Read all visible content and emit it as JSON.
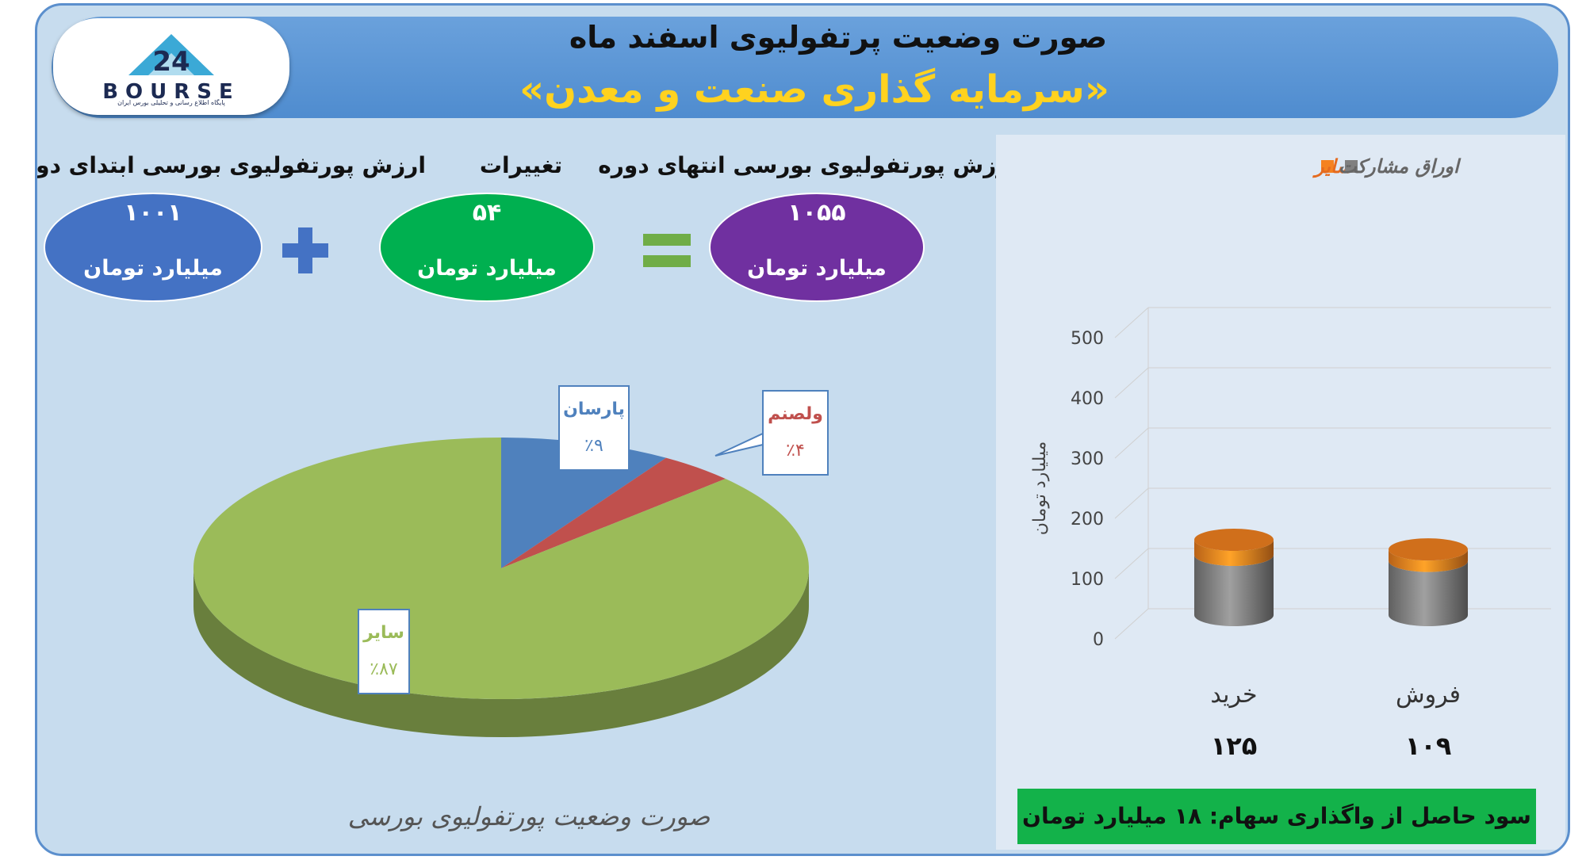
{
  "header": {
    "title": "صورت وضعیت پرتفولیوی اسفند ماه",
    "subtitle": "«سرمایه گذاری صنعت و معدن»"
  },
  "logo": {
    "text": "BOURSE",
    "tagline": "پایگاه اطلاع رسانی و تحلیلی بورس ایران",
    "number": "24"
  },
  "summary": {
    "start_label": "ارزش پورتفولیوی بورسی ابتدای دوره",
    "start_value": "۱۰۰۱",
    "change_label": "تغییرات",
    "change_value": "۵۴",
    "end_label": "ارزش پورتفولیوی بورسی انتهای دوره",
    "end_value": "۱۰۵۵",
    "unit": "میلیارد تومان",
    "plus_sign": "+",
    "equals_sign": "=",
    "colors": {
      "start": "#4472c4",
      "change": "#00b050",
      "end": "#7030a0"
    }
  },
  "pie_caption": "صورت وضعیت پورتفولیوی بورسی",
  "profit_text": "سود حاصل از واگذاری سهام: ۱۸ میلیارد تومان",
  "chart_data": [
    {
      "type": "pie",
      "title": "",
      "slices": [
        {
          "label": "پارسان",
          "value": 9,
          "display": "٪۹",
          "color": "#4f81bd"
        },
        {
          "label": "ولصنم",
          "value": 4,
          "display": "٪۴",
          "color": "#c0504d"
        },
        {
          "label": "سایر",
          "value": 87,
          "display": "٪۸۷",
          "color": "#9bbb59"
        }
      ]
    },
    {
      "type": "bar",
      "title": "",
      "categories": [
        "خرید",
        "فروش"
      ],
      "category_totals": [
        "۱۲۵",
        "۱۰۹"
      ],
      "series": [
        {
          "name": "اوراق مشارکت",
          "values": [
            100,
            90
          ],
          "color": "#808080"
        },
        {
          "name": "سایر",
          "values": [
            25,
            19
          ],
          "color": "#f58220"
        }
      ],
      "ylabel": "میلیارد تومان",
      "ylim": [
        0,
        500
      ],
      "yticks": [
        0,
        100,
        200,
        300,
        400,
        500
      ],
      "grid": true,
      "legend": "top"
    }
  ]
}
